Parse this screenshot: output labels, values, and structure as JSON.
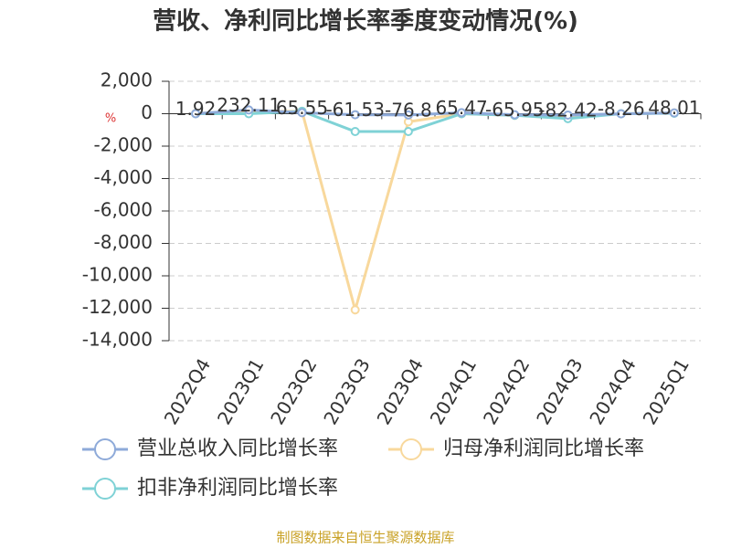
{
  "chart_data": {
    "type": "line",
    "title": "营收、净利同比增长率季度变动情况(%)",
    "unit": "%",
    "source": "制图数据来自恒生聚源数据库",
    "categories": [
      "2022Q4",
      "2023Q1",
      "2023Q2",
      "2023Q3",
      "2023Q4",
      "2024Q1",
      "2024Q2",
      "2024Q3",
      "2024Q4",
      "2025Q1"
    ],
    "series": [
      {
        "name": "营业总收入同比增长率",
        "color": "#8eaad9",
        "values": [
          1.92,
          232.11,
          65.55,
          -61.53,
          -76.8,
          65.47,
          -65.95,
          -82.42,
          -8.26,
          48.01
        ],
        "labels": true
      },
      {
        "name": "归母净利润同比增长率",
        "color": "#f8d89c",
        "values": [
          20,
          150,
          150,
          -12100,
          -500,
          0,
          -100,
          -200,
          0,
          50
        ]
      },
      {
        "name": "扣非净利润同比增长率",
        "color": "#7fd2d6",
        "values": [
          0,
          0,
          150,
          -1100,
          -1100,
          0,
          -100,
          -300,
          0,
          30
        ]
      }
    ],
    "ylim": [
      -14000,
      2000
    ],
    "yticks": [
      {
        "value": 2000,
        "label": "2,000"
      },
      0,
      {
        "value": -2000,
        "label": "-2,000"
      },
      {
        "value": -4000,
        "label": "-4,000"
      },
      {
        "value": -6000,
        "label": "-6,000"
      },
      {
        "value": -8000,
        "label": "-8,000"
      },
      {
        "value": -10000,
        "label": "-10,000"
      },
      {
        "value": -12000,
        "label": "-12,000"
      },
      {
        "value": -14000,
        "label": "-14,000"
      }
    ],
    "grid": true
  }
}
